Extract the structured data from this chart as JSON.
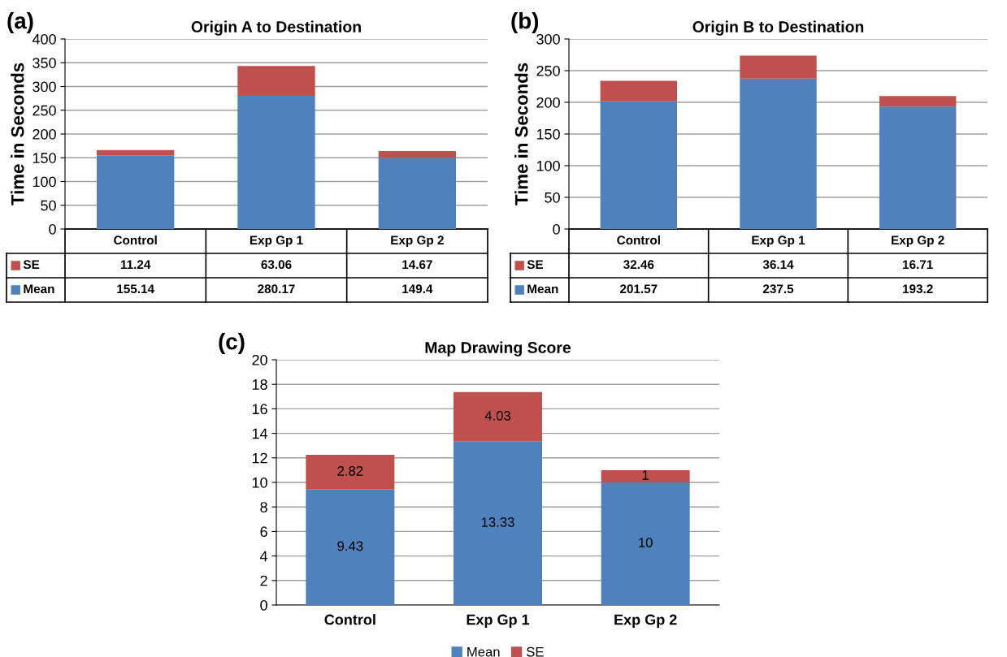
{
  "chart_data": [
    {
      "type": "bar",
      "stacked": true,
      "title": "Origin A to Destination",
      "ylabel": "Time in Seconds",
      "categories": [
        "Control",
        "Exp Gp 1",
        "Exp Gp 2"
      ],
      "series": [
        {
          "name": "Mean",
          "color": "#4f81bd",
          "values": [
            155.14,
            280.17,
            149.4
          ]
        },
        {
          "name": "SE",
          "color": "#c0504d",
          "values": [
            11.24,
            63.06,
            14.67
          ]
        }
      ],
      "ylim": [
        0,
        400
      ],
      "yticks": [
        0,
        50,
        100,
        150,
        200,
        250,
        300,
        350,
        400
      ],
      "grid": "y",
      "data_labels": true,
      "legend": "bottom left",
      "annotations": [
        "(a)"
      ]
    },
    {
      "type": "bar",
      "stacked": true,
      "title": "Origin B to Destination",
      "ylabel": "Time in Seconds",
      "categories": [
        "Control",
        "Exp Gp 1",
        "Exp Gp 2"
      ],
      "series": [
        {
          "name": "Mean",
          "color": "#4f81bd",
          "values": [
            201.57,
            237.5,
            193.2
          ]
        },
        {
          "name": "SE",
          "color": "#c0504d",
          "values": [
            32.46,
            36.14,
            16.71
          ]
        }
      ],
      "ylim": [
        0,
        300
      ],
      "yticks": [
        0,
        50,
        100,
        150,
        200,
        250,
        300
      ],
      "grid": "y",
      "data_labels": true,
      "legend": "bottom left",
      "annotations": [
        "(b)"
      ]
    },
    {
      "type": "bar",
      "stacked": true,
      "title": "Map Drawing Score",
      "categories": [
        "Control",
        "Exp Gp 1",
        "Exp Gp 2"
      ],
      "series": [
        {
          "name": "Mean",
          "color": "#4f81bd",
          "values": [
            9.43,
            13.33,
            10
          ]
        },
        {
          "name": "SE",
          "color": "#c0504d",
          "values": [
            2.82,
            4.03,
            1
          ]
        }
      ],
      "ylim": [
        0,
        20
      ],
      "yticks": [
        0,
        2,
        4,
        6,
        8,
        10,
        12,
        14,
        16,
        18,
        20
      ],
      "grid": "y",
      "data_labels": true,
      "legend": "bottom",
      "annotations": [
        "(c)"
      ]
    }
  ]
}
